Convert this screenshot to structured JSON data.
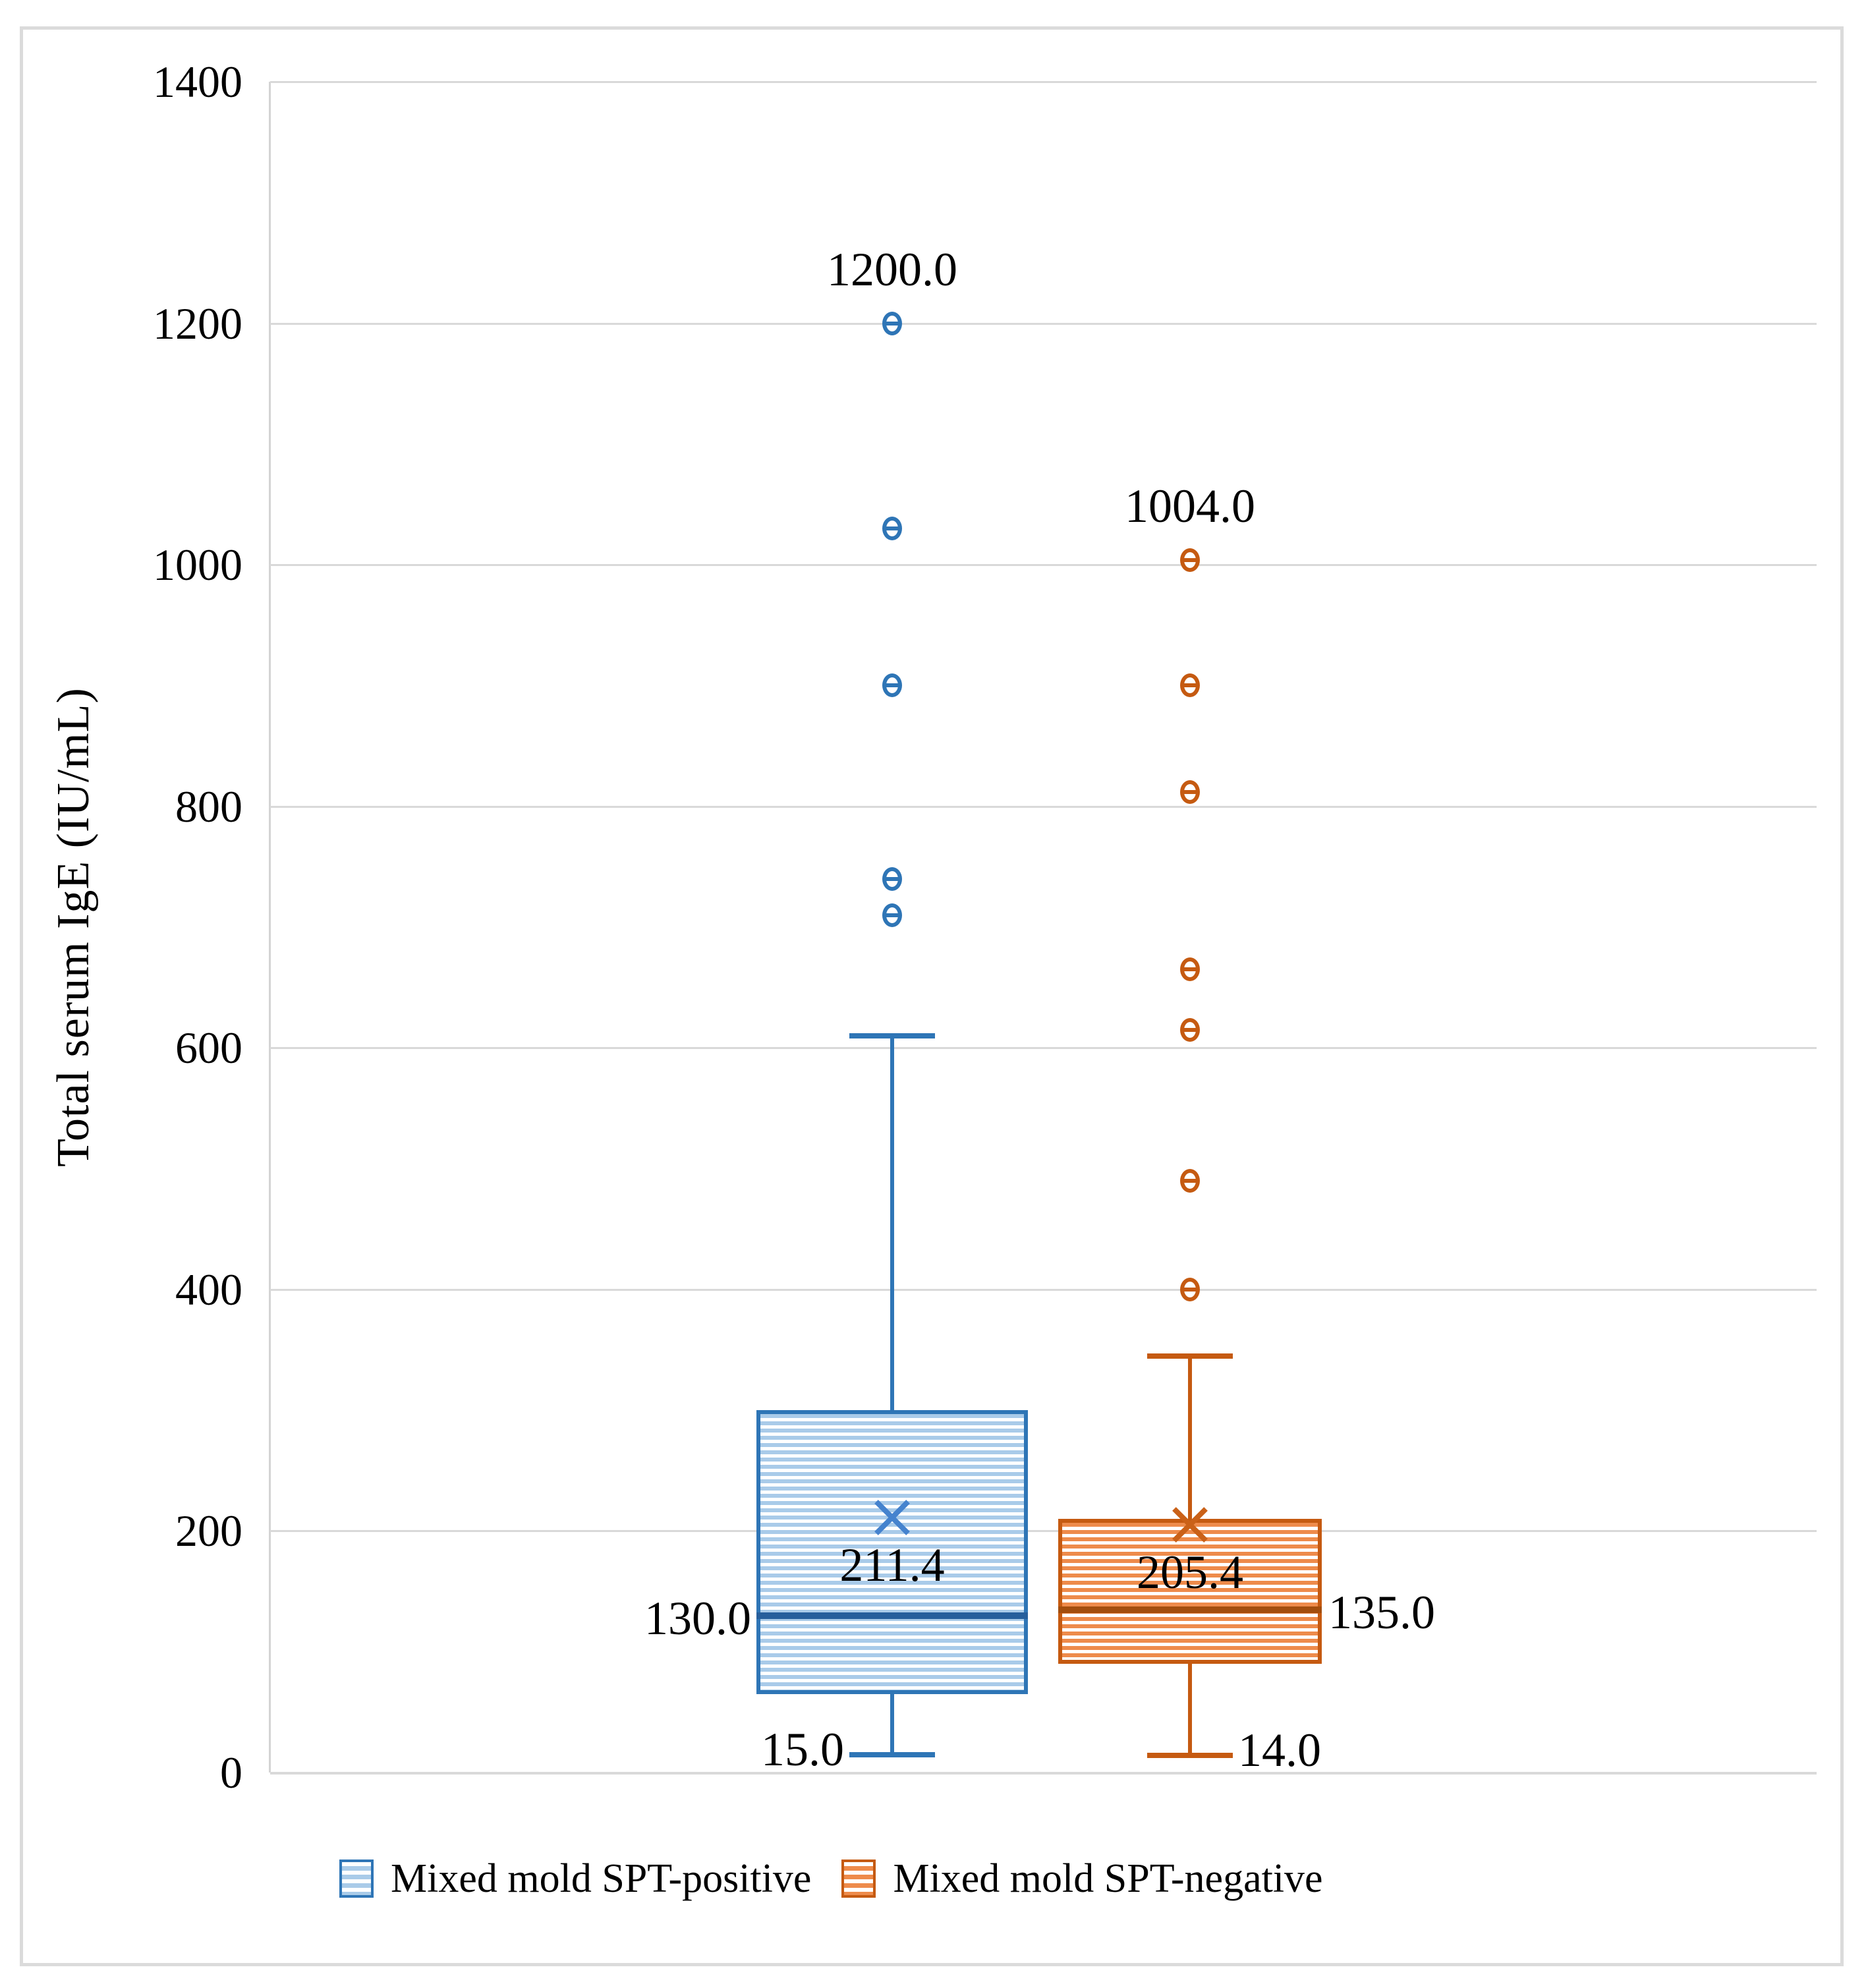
{
  "chart_data": {
    "type": "box",
    "title": "",
    "ylabel": "Total serum IgE (IU/mL)",
    "xlabel": "",
    "ylim": [
      0,
      1400
    ],
    "yticks": [
      0,
      200,
      400,
      600,
      800,
      1000,
      1200,
      1400
    ],
    "grid": true,
    "legend_position": "bottom",
    "series": [
      {
        "name": "Mixed mold SPT-positive",
        "color": "#2E75B6",
        "fill_light": "#A9CBE9",
        "median_color": "#275F9C",
        "mean_marker_color": "#4583CE",
        "min": 15.0,
        "q1": 65,
        "median": 130.0,
        "mean": 211.4,
        "q3": 300,
        "whisker_max": 610,
        "outliers": [
          710,
          740,
          900,
          1030,
          1200
        ],
        "labels": {
          "max_outlier": "1200.0",
          "mean": "211.4",
          "median": "130.0",
          "min": "15.0"
        },
        "label_side": "left"
      },
      {
        "name": "Mixed mold SPT-negative",
        "color": "#C55A11",
        "fill_light": "#EE8B4B",
        "median_color": "#A34E0E",
        "mean_marker_color": "#CA6118",
        "min": 14.0,
        "q1": 90,
        "median": 135.0,
        "mean": 205.4,
        "q3": 210,
        "whisker_max": 345,
        "outliers": [
          400,
          490,
          615,
          665,
          812,
          900,
          1004
        ],
        "labels": {
          "max_outlier": "1004.0",
          "mean": "205.4",
          "median": "135.0",
          "min": "14.0"
        },
        "label_side": "right"
      }
    ]
  }
}
